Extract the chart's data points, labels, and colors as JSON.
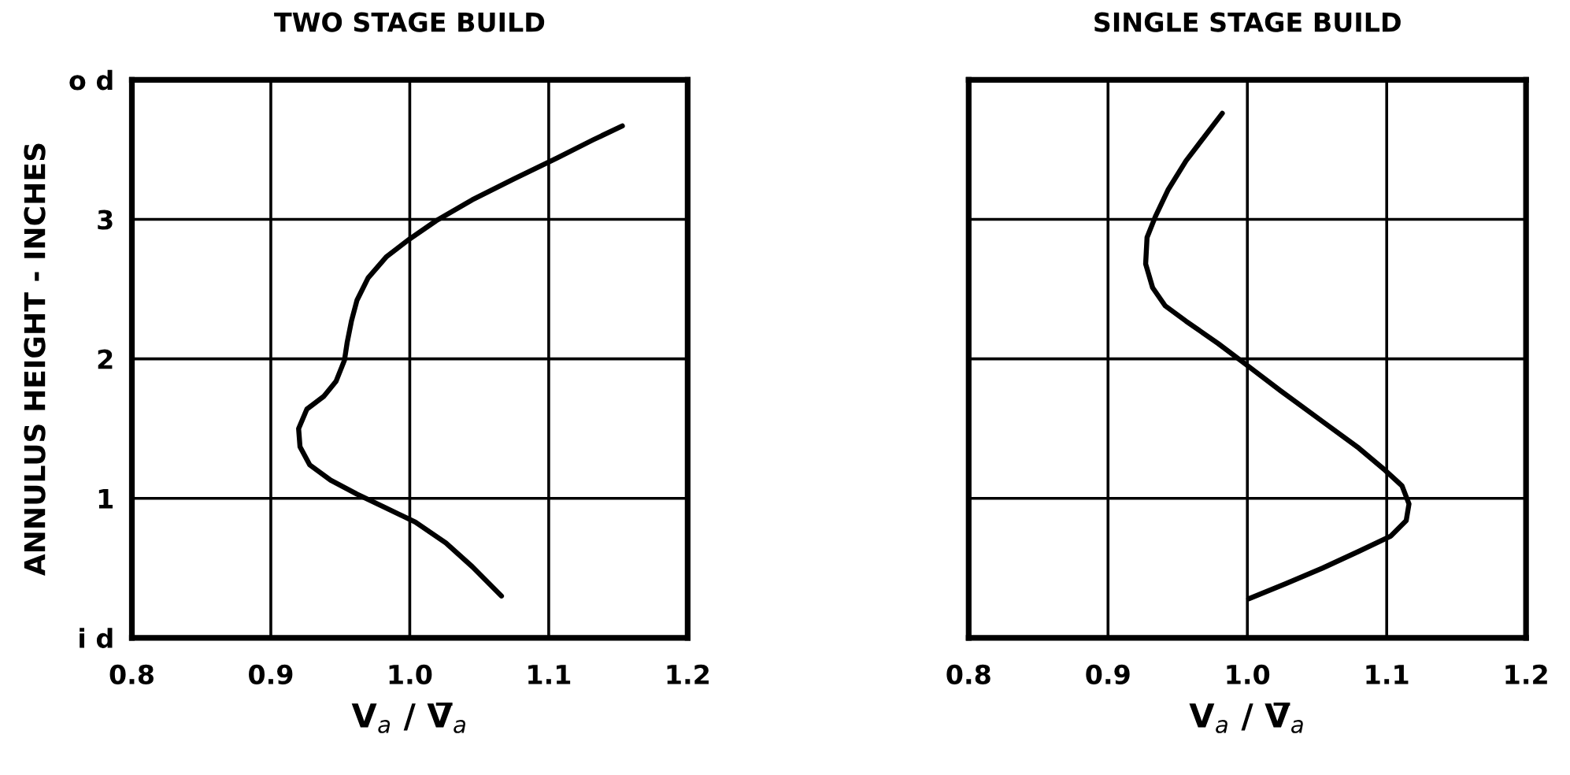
{
  "chart_data": [
    {
      "type": "line",
      "title": "TWO STAGE BUILD",
      "xlabel": "V$_{a}$ / V̅$_{a}$",
      "ylabel": "ANNULUS HEIGHT - INCHES",
      "xlim": [
        0.8,
        1.2
      ],
      "ylim": [
        0,
        4
      ],
      "xticks": [
        0.8,
        0.9,
        {
          "value": 1,
          "label": "1.0"
        },
        1.1,
        1.2
      ],
      "yticks": [
        {
          "value": 0,
          "label": "i d"
        },
        1,
        2,
        3,
        {
          "value": 4,
          "label": "o d"
        }
      ],
      "grid": true,
      "marker": "none",
      "line_style": "solid",
      "series": [
        {
          "color": "#000000",
          "x": [
            1.066,
            1.045,
            1.026,
            1.004,
            0.981,
            0.962,
            0.943,
            0.928,
            0.921,
            0.92,
            0.926,
            0.938,
            0.947,
            0.953,
            0.955,
            0.958,
            0.962,
            0.97,
            0.983,
            1.0,
            1.019,
            1.045,
            1.075,
            1.106,
            1.132,
            1.153
          ],
          "values": [
            0.3,
            0.51,
            0.68,
            0.83,
            0.94,
            1.03,
            1.13,
            1.24,
            1.37,
            1.5,
            1.64,
            1.73,
            1.84,
            1.99,
            2.12,
            2.27,
            2.42,
            2.58,
            2.73,
            2.86,
            2.99,
            3.14,
            3.29,
            3.44,
            3.57,
            3.67
          ]
        }
      ]
    },
    {
      "type": "line",
      "title": "SINGLE STAGE BUILD",
      "xlabel": "V$_{a}$ / V̅$_{a}$",
      "xlim": [
        0.8,
        1.2
      ],
      "ylim": [
        0,
        4
      ],
      "xticks": [
        0.8,
        0.9,
        {
          "value": 1,
          "label": "1.0"
        },
        1.1,
        1.2
      ],
      "yticks": [
        0,
        1,
        2,
        3,
        4
      ],
      "tick_labels": "x",
      "grid": true,
      "marker": "none",
      "line_style": "solid",
      "series": [
        {
          "color": "#000000",
          "x": [
            1.001,
            1.028,
            1.054,
            1.08,
            1.103,
            1.114,
            1.116,
            1.111,
            1.099,
            1.08,
            1.054,
            1.024,
            0.999,
            0.979,
            0.956,
            0.941,
            0.932,
            0.927,
            0.928,
            0.934,
            0.943,
            0.956,
            0.969,
            0.982
          ],
          "values": [
            0.28,
            0.39,
            0.5,
            0.62,
            0.73,
            0.84,
            0.96,
            1.09,
            1.2,
            1.36,
            1.55,
            1.77,
            1.96,
            2.11,
            2.27,
            2.38,
            2.51,
            2.68,
            2.87,
            3.02,
            3.21,
            3.42,
            3.59,
            3.76
          ]
        }
      ]
    }
  ]
}
